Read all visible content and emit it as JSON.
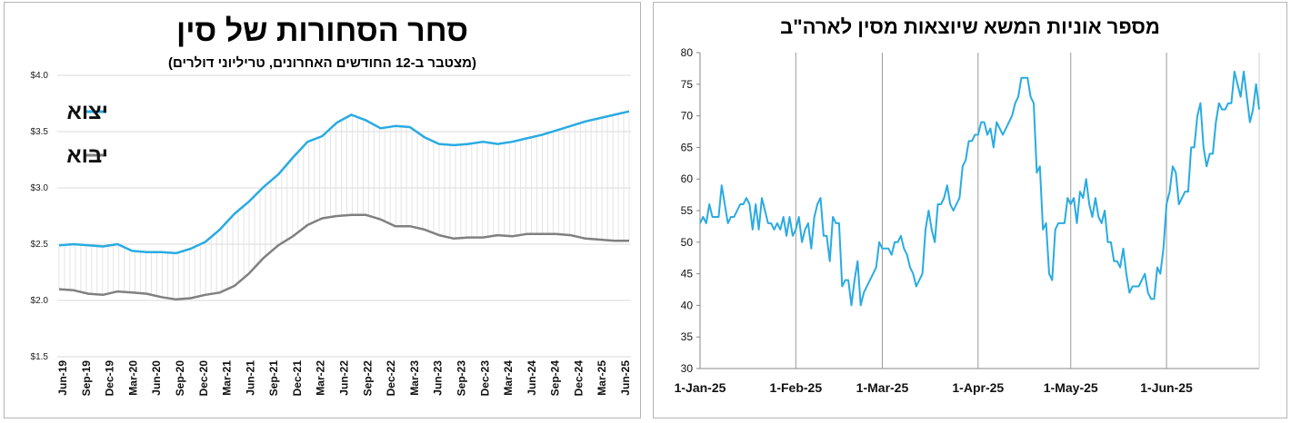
{
  "chart_data": [
    {
      "type": "line",
      "title": "סחר הסחורות של סין",
      "subtitle": "(מצטבר ב-12 החודשים האחרונים, טריליוני דולרים)",
      "y_tick_labels": [
        "$1.5",
        "$2.0",
        "$2.5",
        "$3.0",
        "$3.5",
        "$4.0"
      ],
      "ylim": [
        1.5,
        4.0
      ],
      "x_tick_labels": [
        "Jun-19",
        "Sep-19",
        "Dec-19",
        "Mar-20",
        "Jun-20",
        "Sep-20",
        "Dec-20",
        "Mar-21",
        "Jun-21",
        "Sep-21",
        "Dec-21",
        "Mar-22",
        "Jun-22",
        "Sep-22",
        "Dec-22",
        "Mar-23",
        "Jun-23",
        "Sep-23",
        "Dec-23",
        "Mar-24",
        "Jun-24",
        "Sep-24",
        "Dec-24",
        "Mar-25",
        "Jun-25"
      ],
      "legend": "left",
      "series": [
        {
          "name": "יצוא",
          "color": "#29abe2",
          "values": [
            2.49,
            2.5,
            2.49,
            2.48,
            2.5,
            2.44,
            2.43,
            2.43,
            2.42,
            2.46,
            2.52,
            2.63,
            2.77,
            2.88,
            3.01,
            3.12,
            3.27,
            3.41,
            3.46,
            3.58,
            3.65,
            3.6,
            3.53,
            3.55,
            3.54,
            3.45,
            3.39,
            3.38,
            3.39,
            3.41,
            3.39,
            3.41,
            3.44,
            3.47,
            3.51,
            3.55,
            3.59,
            3.62,
            3.65,
            3.68
          ]
        },
        {
          "name": "יבוא",
          "color": "#808080",
          "values": [
            2.1,
            2.09,
            2.06,
            2.05,
            2.08,
            2.07,
            2.06,
            2.03,
            2.01,
            2.02,
            2.05,
            2.07,
            2.13,
            2.24,
            2.38,
            2.49,
            2.57,
            2.67,
            2.73,
            2.75,
            2.76,
            2.76,
            2.72,
            2.66,
            2.66,
            2.63,
            2.58,
            2.55,
            2.56,
            2.56,
            2.58,
            2.57,
            2.59,
            2.59,
            2.59,
            2.58,
            2.55,
            2.54,
            2.53,
            2.53
          ]
        }
      ]
    },
    {
      "type": "line",
      "title": "מספר אוניות המשא שיוצאות מסין לארה\"ב",
      "ylim": [
        30,
        80
      ],
      "y_tick_labels": [
        "30",
        "35",
        "40",
        "45",
        "50",
        "55",
        "60",
        "65",
        "70",
        "75",
        "80"
      ],
      "x_tick_labels": [
        "1-Jan-25",
        "1-Feb-25",
        "1-Mar-25",
        "1-Apr-25",
        "1-May-25",
        "1-Jun-25"
      ],
      "grid": "vertical",
      "series": [
        {
          "color": "#29abe2",
          "values": [
            53,
            54,
            53,
            56,
            54,
            54,
            54,
            59,
            56,
            53,
            54,
            54,
            55,
            56,
            56,
            57,
            56,
            52,
            56,
            52,
            57,
            55,
            53,
            53,
            52,
            53,
            52,
            54,
            51,
            54,
            51,
            52,
            54,
            50,
            52,
            53,
            49,
            54,
            56,
            57,
            51,
            51,
            47,
            54,
            53,
            53,
            43,
            44,
            44,
            40,
            44,
            47,
            40,
            42,
            43,
            44,
            45,
            46,
            50,
            49,
            49,
            49,
            48,
            50,
            50,
            51,
            49,
            48,
            46,
            45,
            43,
            44,
            45,
            52,
            55,
            52,
            50,
            56,
            56,
            57,
            59,
            56,
            55,
            56,
            57,
            62,
            63,
            66,
            66,
            67,
            67,
            69,
            69,
            67,
            68,
            65,
            69,
            68,
            67,
            68,
            69,
            70,
            72,
            73,
            76,
            76,
            76,
            73,
            72,
            61,
            62,
            52,
            53,
            45,
            44,
            52,
            53,
            53,
            53,
            57,
            56,
            57,
            53,
            58,
            57,
            60,
            56,
            54,
            57,
            54,
            53,
            55,
            50,
            50,
            47,
            47,
            46,
            49,
            45,
            42,
            43,
            43,
            43,
            44,
            45,
            42,
            41,
            41,
            46,
            45,
            49,
            56,
            58,
            62,
            61,
            56,
            57,
            58,
            58,
            65,
            65,
            70,
            72,
            65,
            62,
            64,
            64,
            69,
            72,
            71,
            71,
            72,
            72,
            77,
            75,
            73,
            77,
            73,
            69,
            71,
            75,
            71
          ]
        }
      ]
    }
  ]
}
